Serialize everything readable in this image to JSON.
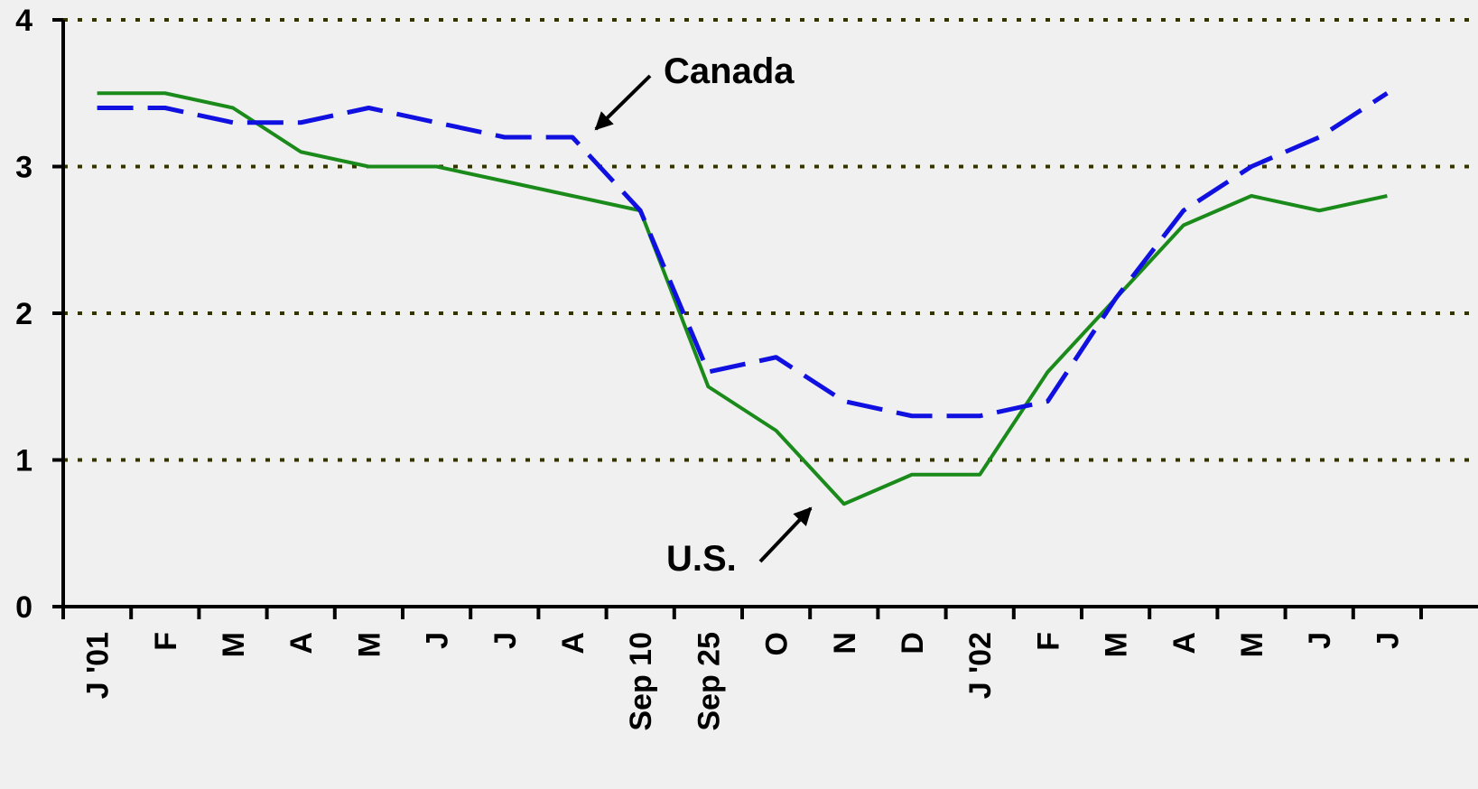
{
  "chart_data": {
    "type": "line",
    "categories": [
      "J '01",
      "F",
      "M",
      "A",
      "M",
      "J",
      "J",
      "A",
      "Sep 10",
      "Sep 25",
      "O",
      "N",
      "D",
      "J '02",
      "F",
      "M",
      "A",
      "M",
      "J",
      "J"
    ],
    "series": [
      {
        "name": "U.S.",
        "color": "#1a8a1a",
        "dash": false,
        "values": [
          3.5,
          3.5,
          3.4,
          3.1,
          3.0,
          3.0,
          2.9,
          2.8,
          2.7,
          1.5,
          1.2,
          0.7,
          0.9,
          0.9,
          1.6,
          2.1,
          2.6,
          2.8,
          2.7,
          2.8
        ]
      },
      {
        "name": "Canada",
        "color": "#1010e0",
        "dash": true,
        "values": [
          3.4,
          3.4,
          3.3,
          3.3,
          3.4,
          3.3,
          3.2,
          3.2,
          2.7,
          1.6,
          1.7,
          1.4,
          1.3,
          1.3,
          1.4,
          2.1,
          2.7,
          3.0,
          3.2,
          3.5
        ]
      }
    ],
    "ylim": [
      0,
      4
    ],
    "yticks": [
      0,
      1,
      2,
      3,
      4
    ],
    "grid": true
  }
}
